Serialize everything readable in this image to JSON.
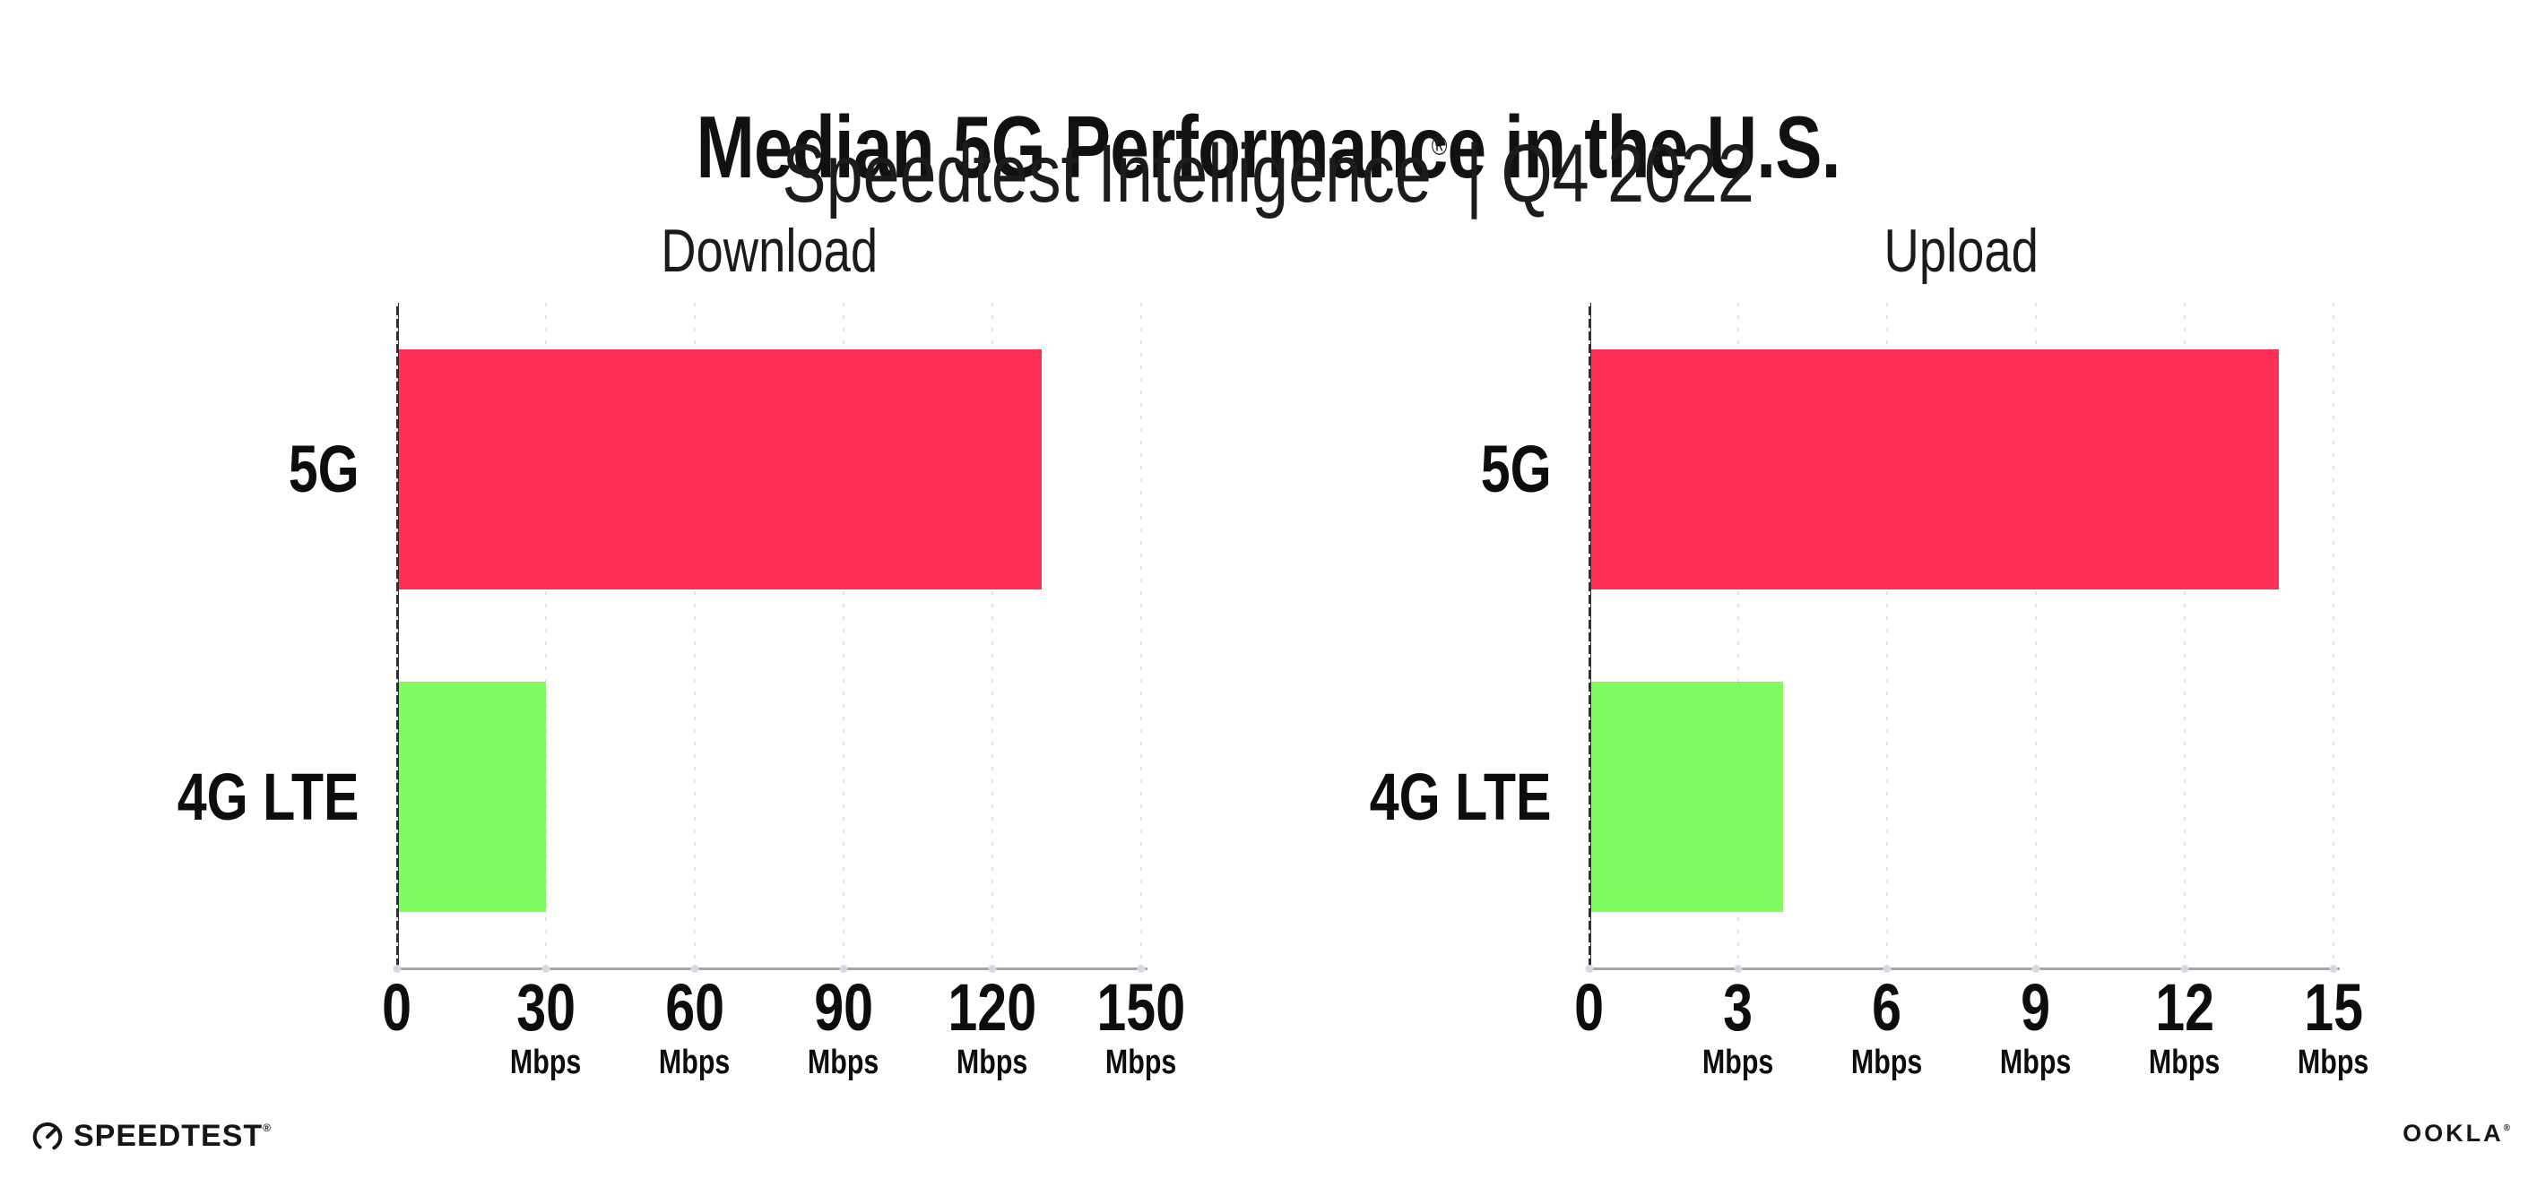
{
  "header": {
    "title": "Median 5G Performance in the U.S.",
    "subtitle": {
      "brand": "Speedtest Intelligence",
      "reg": "®",
      "rest": " | Q4 2022"
    }
  },
  "colors": {
    "bar_5g": "#FF2E55",
    "bar_4g_lte": "#80FB60",
    "bar_colors": [
      "#FF2E55",
      "#80FB60"
    ],
    "gridline": "#E3E3EE",
    "gridline_over_bar": "#ECECF4",
    "axis": "#2E2E33",
    "baseline": "#A6A6A6",
    "baseline_dot": "#D9D9E6",
    "text": "#111111"
  },
  "chart_data": [
    {
      "type": "bar",
      "orientation": "horizontal",
      "title": "Download",
      "categories": [
        "5G",
        "4G LTE"
      ],
      "values": [
        130,
        30
      ],
      "unit": "Mbps",
      "xlim": [
        0,
        150
      ],
      "xticks": [
        0,
        30,
        60,
        90,
        120,
        150
      ],
      "tick_unit": "Mbps",
      "grid": "dotted-vertical",
      "legend": "none"
    },
    {
      "type": "bar",
      "orientation": "horizontal",
      "title": "Upload",
      "categories": [
        "5G",
        "4G LTE"
      ],
      "values": [
        13.9,
        3.9
      ],
      "unit": "Mbps",
      "xlim": [
        0,
        15
      ],
      "xticks": [
        0,
        3,
        6,
        9,
        12,
        15
      ],
      "tick_unit": "Mbps",
      "grid": "dotted-vertical",
      "legend": "none"
    }
  ],
  "footer": {
    "speedtest": "SPEEDTEST",
    "speedtest_reg": "®",
    "ookla": "OOKLA",
    "ookla_reg": "®"
  }
}
